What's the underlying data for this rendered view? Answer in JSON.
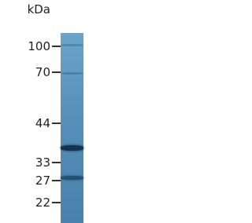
{
  "unit_label": "kDa",
  "markers": [
    "100",
    "70",
    "44",
    "33",
    "27",
    "22"
  ]
}
